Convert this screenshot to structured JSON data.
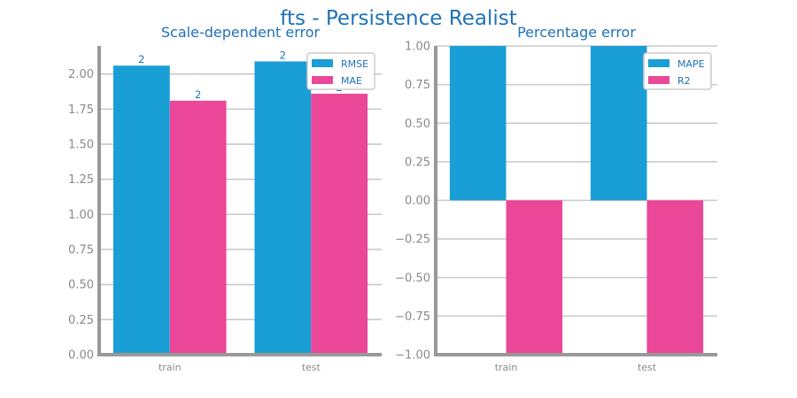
{
  "figure": {
    "title": "fts - Persistence Realist"
  },
  "chart_data": [
    {
      "type": "bar",
      "title": "Scale-dependent error",
      "categories": [
        "train",
        "test"
      ],
      "series": [
        {
          "name": "RMSE",
          "values": [
            2.06,
            2.09
          ],
          "labels": [
            "2",
            "2"
          ]
        },
        {
          "name": "MAE",
          "values": [
            1.81,
            1.86
          ],
          "labels": [
            "2",
            "2"
          ]
        }
      ],
      "ylim": [
        0,
        2.2
      ],
      "yticks": [
        0.0,
        0.25,
        0.5,
        0.75,
        1.0,
        1.25,
        1.5,
        1.75,
        2.0
      ],
      "ytick_labels": [
        "0.00",
        "0.25",
        "0.50",
        "0.75",
        "1.00",
        "1.25",
        "1.50",
        "1.75",
        "2.00"
      ],
      "xlabel": "",
      "ylabel": "",
      "grid": true,
      "legend_position": "top-right",
      "colors": [
        "#1a9ed6",
        "#ea4798"
      ]
    },
    {
      "type": "bar",
      "title": "Percentage error",
      "categories": [
        "train",
        "test"
      ],
      "series": [
        {
          "name": "MAPE",
          "values": [
            1.0,
            1.0
          ]
        },
        {
          "name": "R2",
          "values": [
            -1.0,
            -1.0
          ]
        }
      ],
      "ylim": [
        -1.0,
        1.0
      ],
      "yticks": [
        -1.0,
        -0.75,
        -0.5,
        -0.25,
        0.0,
        0.25,
        0.5,
        0.75,
        1.0
      ],
      "ytick_labels": [
        "−1.00",
        "−0.75",
        "−0.50",
        "−0.25",
        "0.00",
        "0.25",
        "0.50",
        "0.75",
        "1.00"
      ],
      "xlabel": "",
      "ylabel": "",
      "grid": true,
      "legend_position": "top-right",
      "colors": [
        "#1a9ed6",
        "#ea4798"
      ]
    }
  ]
}
